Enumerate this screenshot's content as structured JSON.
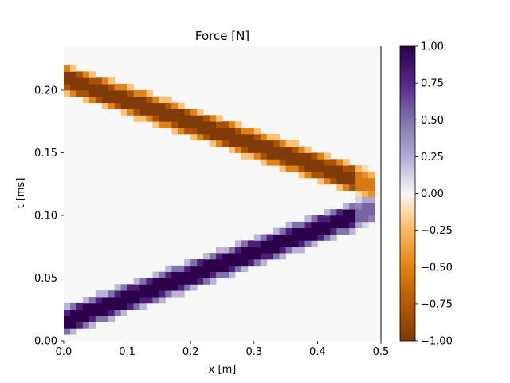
{
  "chart_data": {
    "type": "heatmap",
    "title": "Force [N]",
    "xlabel": "x [m]",
    "ylabel": "t [ms]",
    "xlim": [
      0.0,
      0.5
    ],
    "ylim": [
      0.0,
      0.235
    ],
    "xticks": [
      0.0,
      0.1,
      0.2,
      0.3,
      0.4,
      0.5
    ],
    "xtick_labels": [
      "0.0",
      "0.1",
      "0.2",
      "0.3",
      "0.4",
      "0.5"
    ],
    "yticks": [
      0.0,
      0.05,
      0.1,
      0.15,
      0.2
    ],
    "ytick_labels": [
      "0.00",
      "0.05",
      "0.10",
      "0.15",
      "0.20"
    ],
    "colormap": "PuOr",
    "vmin": -1.0,
    "vmax": 1.0,
    "colorbar_ticks": [
      1.0,
      0.75,
      0.5,
      0.25,
      0.0,
      -0.25,
      -0.5,
      -0.75,
      -1.0
    ],
    "colorbar_tick_labels": [
      "1.00",
      "0.75",
      "0.50",
      "0.25",
      "0.00",
      "−0.25",
      "−0.50",
      "−0.75",
      "−1.00"
    ],
    "background_value": 0.0,
    "boundary_line": {
      "x": 0.5,
      "color": "#808080"
    },
    "series": [
      {
        "value": 1.0,
        "from": {
          "x": 0.0,
          "t": 0.0155
        },
        "to": {
          "x": 0.49,
          "t": 0.1055
        },
        "half_width_t": 0.0105
      },
      {
        "value": -1.0,
        "from": {
          "x": 0.0,
          "t": 0.2095
        },
        "to": {
          "x": 0.49,
          "t": 0.1235
        },
        "half_width_t": 0.0105
      }
    ]
  }
}
